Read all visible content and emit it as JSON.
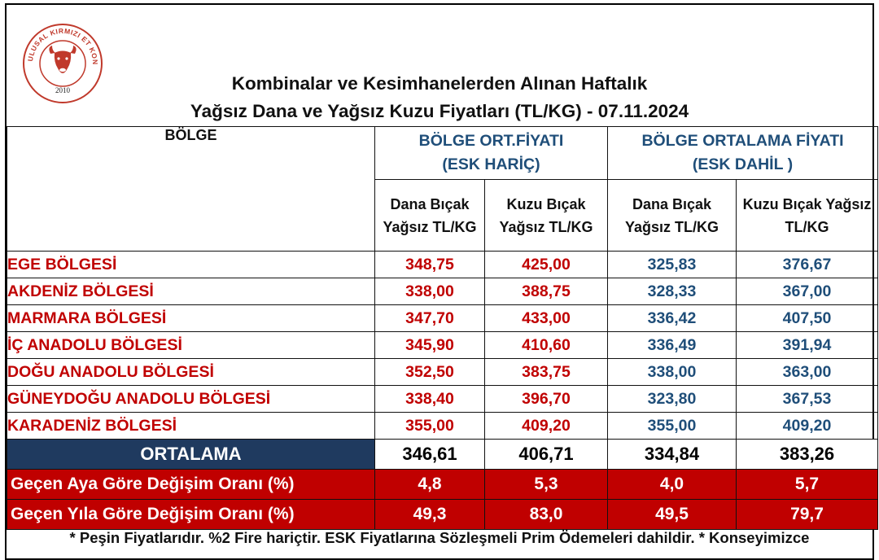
{
  "logo": {
    "ring_text": "ULUSAL KIRMIZI ET KONSEYİ",
    "year": "2010",
    "ring_color": "#c0392b",
    "icon": "bull-head-icon"
  },
  "title": {
    "line1": "Kombinalar ve Kesimhanelerden Alınan Haftalık",
    "line2": "Yağsız Dana ve Yağsız Kuzu Fiyatları (TL/KG) - 07.11.2024"
  },
  "table": {
    "region_header": "BÖLGE",
    "groups": [
      {
        "line1": "BÖLGE ORT.FİYATI",
        "line2": "(ESK HARİÇ)"
      },
      {
        "line1": "BÖLGE ORTALAMA FİYATI",
        "line2": "(ESK DAHİL )"
      }
    ],
    "columns": [
      {
        "line1": "Dana Bıçak",
        "line2": "Yağsız TL/KG"
      },
      {
        "line1": "Kuzu Bıçak",
        "line2": "Yağsız TL/KG"
      },
      {
        "line1": "Dana Bıçak",
        "line2": "Yağsız TL/KG"
      },
      {
        "line1": "Kuzu Bıçak Yağsız",
        "line2": "TL/KG"
      }
    ],
    "rows": [
      {
        "name": "EGE BÖLGESİ",
        "values": [
          "348,75",
          "425,00",
          "325,83",
          "376,67"
        ]
      },
      {
        "name": "AKDENİZ BÖLGESİ",
        "values": [
          "338,00",
          "388,75",
          "328,33",
          "367,00"
        ]
      },
      {
        "name": "MARMARA BÖLGESİ",
        "values": [
          "347,70",
          "433,00",
          "336,42",
          "407,50"
        ]
      },
      {
        "name": "İÇ ANADOLU BÖLGESİ",
        "values": [
          "345,90",
          "410,60",
          "336,49",
          "391,94"
        ]
      },
      {
        "name": "DOĞU ANADOLU BÖLGESİ",
        "values": [
          "352,50",
          "383,75",
          "338,00",
          "363,00"
        ]
      },
      {
        "name": "GÜNEYDOĞU ANADOLU BÖLGESİ",
        "values": [
          "338,40",
          "396,70",
          "323,80",
          "367,53"
        ]
      },
      {
        "name": "KARADENİZ BÖLGESİ",
        "values": [
          "355,00",
          "409,20",
          "355,00",
          "409,20"
        ]
      }
    ],
    "average": {
      "label": "ORTALAMA",
      "values": [
        "346,61",
        "406,71",
        "334,84",
        "383,26"
      ]
    },
    "changes": [
      {
        "label": "Geçen Aya Göre Değişim Oranı (%)",
        "values": [
          "4,8",
          "5,3",
          "4,0",
          "5,7"
        ]
      },
      {
        "label": "Geçen Yıla Göre Değişim Oranı (%)",
        "values": [
          "49,3",
          "83,0",
          "49,5",
          "79,7"
        ]
      }
    ]
  },
  "footnote": "* Peşin Fiyatlarıdır.  %2 Fire hariçtir. ESK Fiyatlarına Sözleşmeli Prim Ödemeleri dahildir. * Konseyimizce",
  "colors": {
    "region_red": "#c00000",
    "value_blue": "#1f4e79",
    "average_navy": "#1f3a5f",
    "change_red": "#c00000"
  }
}
